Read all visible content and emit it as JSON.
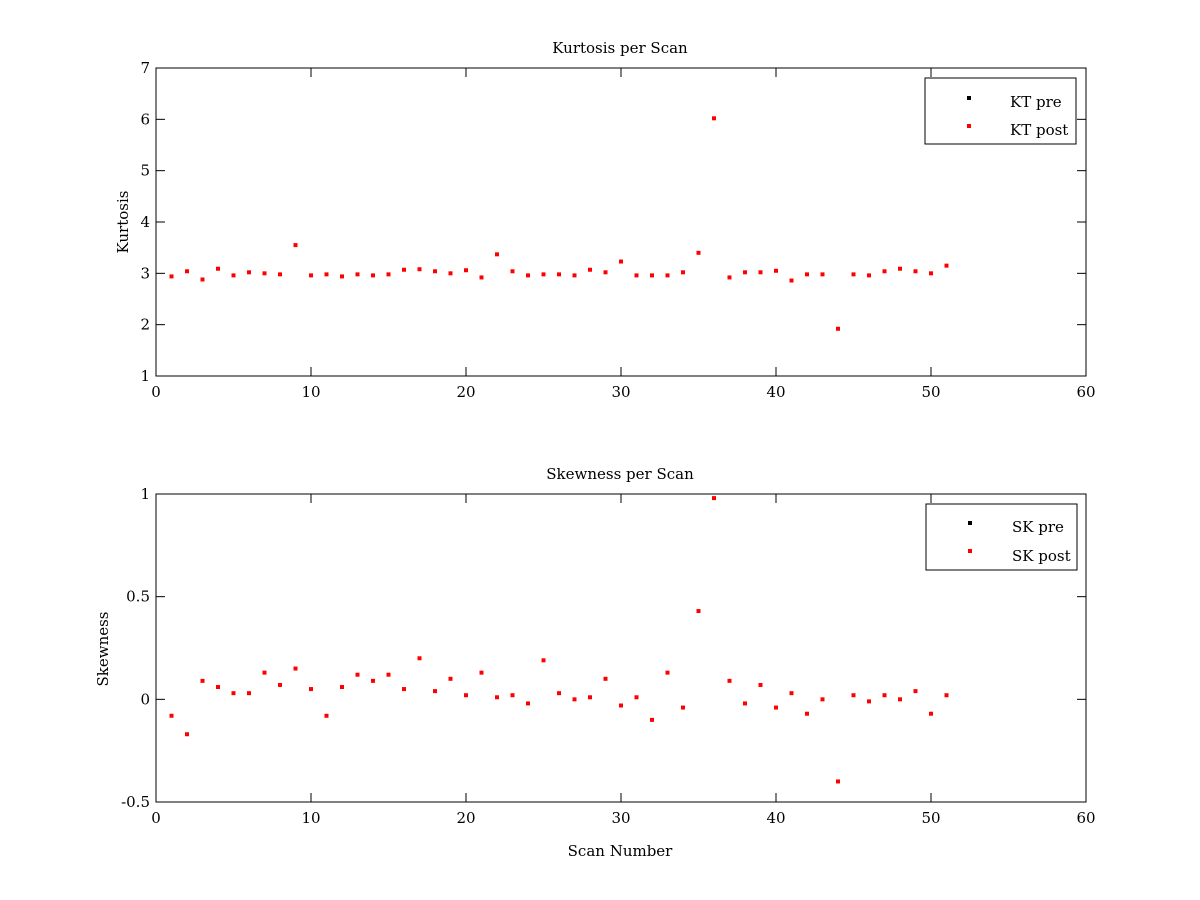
{
  "figure_background": "#ffffff",
  "chart_data": [
    {
      "type": "scatter",
      "title": "Kurtosis per Scan",
      "xlabel": "",
      "ylabel": "Kurtosis",
      "xlim": [
        0,
        60
      ],
      "ylim": [
        1,
        7
      ],
      "xticks": [
        "0",
        "10",
        "20",
        "30",
        "40",
        "50",
        "60"
      ],
      "yticks": [
        "1",
        "2",
        "3",
        "4",
        "5",
        "6",
        "7"
      ],
      "xtick_values": [
        0,
        10,
        20,
        30,
        40,
        50,
        60
      ],
      "ytick_values": [
        1,
        2,
        3,
        4,
        5,
        6,
        7
      ],
      "grid": false,
      "legend": {
        "placement": "top-right",
        "entries": [
          "KT pre",
          "KT post"
        ]
      },
      "series": [
        {
          "name": "KT pre",
          "color": "#000000",
          "points": []
        },
        {
          "name": "KT post",
          "color": "#ff0000",
          "points": [
            [
              1,
              2.94
            ],
            [
              2,
              3.04
            ],
            [
              3,
              2.88
            ],
            [
              4,
              3.09
            ],
            [
              5,
              2.96
            ],
            [
              6,
              3.02
            ],
            [
              7,
              3.0
            ],
            [
              8,
              2.98
            ],
            [
              9,
              3.55
            ],
            [
              10,
              2.96
            ],
            [
              11,
              2.98
            ],
            [
              12,
              2.94
            ],
            [
              13,
              2.98
            ],
            [
              14,
              2.96
            ],
            [
              15,
              2.98
            ],
            [
              16,
              3.07
            ],
            [
              17,
              3.08
            ],
            [
              18,
              3.04
            ],
            [
              19,
              3.0
            ],
            [
              20,
              3.06
            ],
            [
              21,
              2.92
            ],
            [
              22,
              3.37
            ],
            [
              23,
              3.04
            ],
            [
              24,
              2.96
            ],
            [
              25,
              2.98
            ],
            [
              26,
              2.98
            ],
            [
              27,
              2.96
            ],
            [
              28,
              3.07
            ],
            [
              29,
              3.02
            ],
            [
              30,
              3.23
            ],
            [
              31,
              2.96
            ],
            [
              32,
              2.96
            ],
            [
              33,
              2.96
            ],
            [
              34,
              3.02
            ],
            [
              35,
              3.4
            ],
            [
              36,
              6.02
            ],
            [
              37,
              2.92
            ],
            [
              38,
              3.02
            ],
            [
              39,
              3.02
            ],
            [
              40,
              3.05
            ],
            [
              41,
              2.86
            ],
            [
              42,
              2.98
            ],
            [
              43,
              2.98
            ],
            [
              44,
              1.92
            ],
            [
              45,
              2.98
            ],
            [
              46,
              2.96
            ],
            [
              47,
              3.04
            ],
            [
              48,
              3.09
            ],
            [
              49,
              3.04
            ],
            [
              50,
              3.0
            ],
            [
              51,
              3.15
            ]
          ]
        }
      ]
    },
    {
      "type": "scatter",
      "title": "Skewness per Scan",
      "xlabel": "Scan Number",
      "ylabel": "Skewness",
      "xlim": [
        0,
        60
      ],
      "ylim": [
        -0.5,
        1
      ],
      "xticks": [
        "0",
        "10",
        "20",
        "30",
        "40",
        "50",
        "60"
      ],
      "yticks": [
        "-0.5",
        "0",
        "0.5",
        "1"
      ],
      "xtick_values": [
        0,
        10,
        20,
        30,
        40,
        50,
        60
      ],
      "ytick_values": [
        -0.5,
        0,
        0.5,
        1
      ],
      "grid": false,
      "legend": {
        "placement": "top-right",
        "entries": [
          "SK pre",
          "SK post"
        ]
      },
      "series": [
        {
          "name": "SK pre",
          "color": "#000000",
          "points": []
        },
        {
          "name": "SK post",
          "color": "#ff0000",
          "points": [
            [
              1,
              -0.08
            ],
            [
              2,
              -0.17
            ],
            [
              3,
              0.09
            ],
            [
              4,
              0.06
            ],
            [
              5,
              0.03
            ],
            [
              6,
              0.03
            ],
            [
              7,
              0.13
            ],
            [
              8,
              0.07
            ],
            [
              9,
              0.15
            ],
            [
              10,
              0.05
            ],
            [
              11,
              -0.08
            ],
            [
              12,
              0.06
            ],
            [
              13,
              0.12
            ],
            [
              14,
              0.09
            ],
            [
              15,
              0.12
            ],
            [
              16,
              0.05
            ],
            [
              17,
              0.2
            ],
            [
              18,
              0.04
            ],
            [
              19,
              0.1
            ],
            [
              20,
              0.02
            ],
            [
              21,
              0.13
            ],
            [
              22,
              0.01
            ],
            [
              23,
              0.02
            ],
            [
              24,
              -0.02
            ],
            [
              25,
              0.19
            ],
            [
              26,
              0.03
            ],
            [
              27,
              0.0
            ],
            [
              28,
              0.01
            ],
            [
              29,
              0.1
            ],
            [
              30,
              -0.03
            ],
            [
              31,
              0.01
            ],
            [
              32,
              -0.1
            ],
            [
              33,
              0.13
            ],
            [
              34,
              -0.04
            ],
            [
              35,
              0.43
            ],
            [
              36,
              0.98
            ],
            [
              37,
              0.09
            ],
            [
              38,
              -0.02
            ],
            [
              39,
              0.07
            ],
            [
              40,
              -0.04
            ],
            [
              41,
              0.03
            ],
            [
              42,
              -0.07
            ],
            [
              43,
              0.0
            ],
            [
              44,
              -0.4
            ],
            [
              45,
              0.02
            ],
            [
              46,
              -0.01
            ],
            [
              47,
              0.02
            ],
            [
              48,
              0.0
            ],
            [
              49,
              0.04
            ],
            [
              50,
              -0.07
            ],
            [
              51,
              0.02
            ]
          ]
        }
      ]
    }
  ]
}
